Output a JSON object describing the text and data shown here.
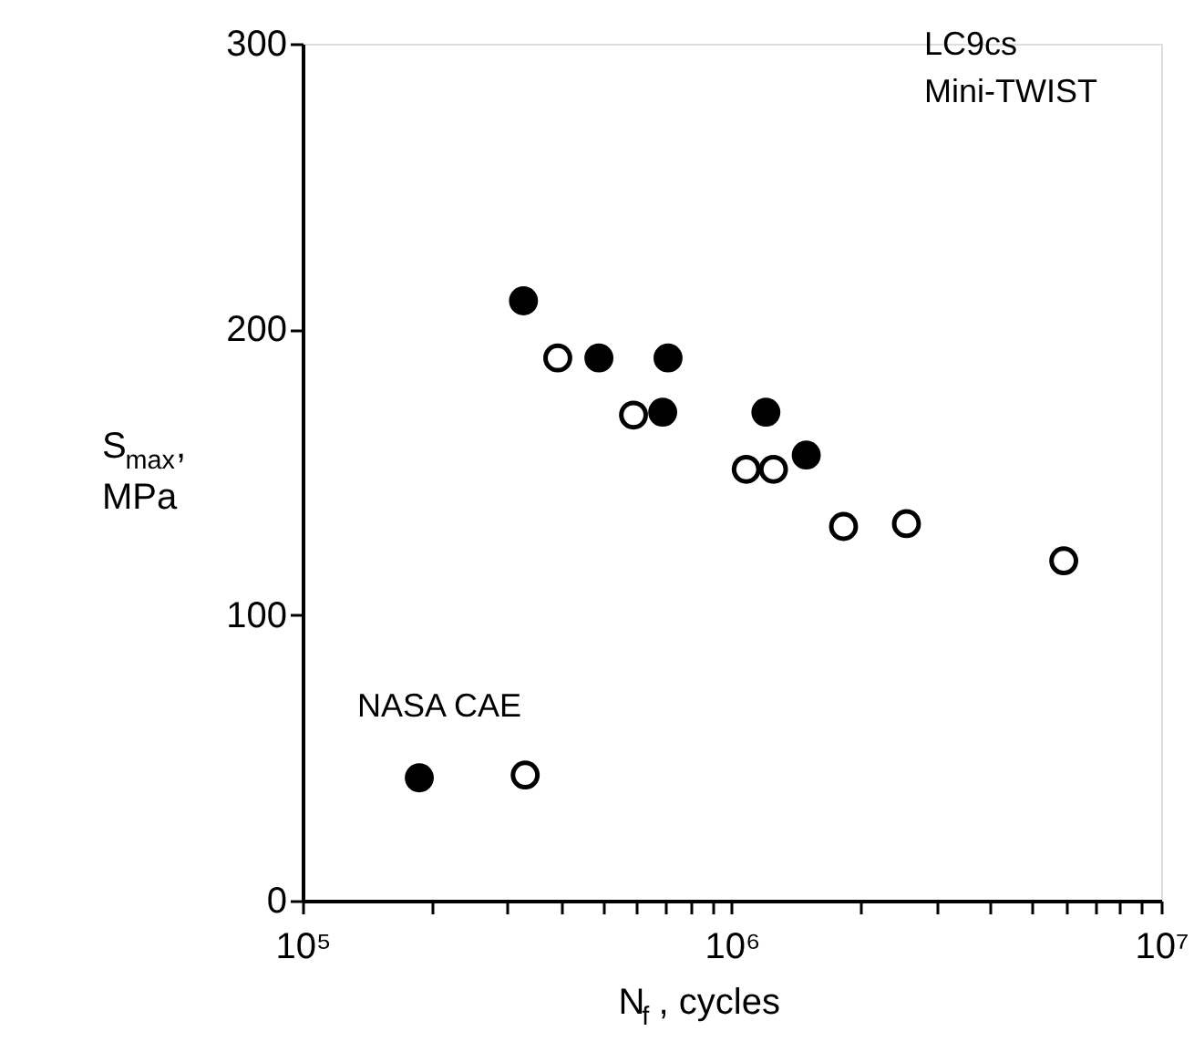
{
  "chart_data": {
    "type": "scatter",
    "xlabel": "N$_{f}$, cycles",
    "ylabel": "S$_{max}$, MPa",
    "series": [
      {
        "color": "#000000",
        "x": [
          327000,
          490000,
          710000,
          690000,
          1200000,
          1490000,
          187000
        ],
        "values": [
          210,
          190,
          190,
          171,
          171,
          156,
          43
        ]
      },
      {
        "color": "#ffffff",
        "x": [
          393000,
          590000,
          1080000,
          1250000,
          1820000,
          2550000,
          5930000,
          330000
        ],
        "values": [
          190,
          170,
          151,
          151,
          131,
          132,
          119,
          44
        ]
      }
    ],
    "xlim": [
      100000,
      10000000
    ],
    "ylim": [
      0,
      300
    ],
    "log": "x",
    "xticks": [
      {
        "value": 100000,
        "label": "10⁵"
      },
      {
        "value": 200000,
        "label": null
      },
      {
        "value": 300000,
        "label": null
      },
      {
        "value": 400000,
        "label": null
      },
      {
        "value": 500000,
        "label": null
      },
      {
        "value": 600000,
        "label": null
      },
      {
        "value": 700000,
        "label": null
      },
      {
        "value": 800000,
        "label": null
      },
      {
        "value": 900000,
        "label": null
      },
      {
        "value": 1000000,
        "label": "10⁶"
      },
      {
        "value": 2000000,
        "label": null
      },
      {
        "value": 3000000,
        "label": null
      },
      {
        "value": 4000000,
        "label": null
      },
      {
        "value": 5000000,
        "label": null
      },
      {
        "value": 6000000,
        "label": null
      },
      {
        "value": 7000000,
        "label": null
      },
      {
        "value": 8000000,
        "label": null
      },
      {
        "value": 9000000,
        "label": null
      },
      {
        "value": 10000000,
        "label": "10⁷"
      }
    ],
    "yticks": [
      0,
      100,
      200,
      300
    ],
    "annotations": [
      "LC9cs",
      "Mini-TWIST",
      "NASA CAE"
    ],
    "marker": "circle",
    "grid": false
  }
}
